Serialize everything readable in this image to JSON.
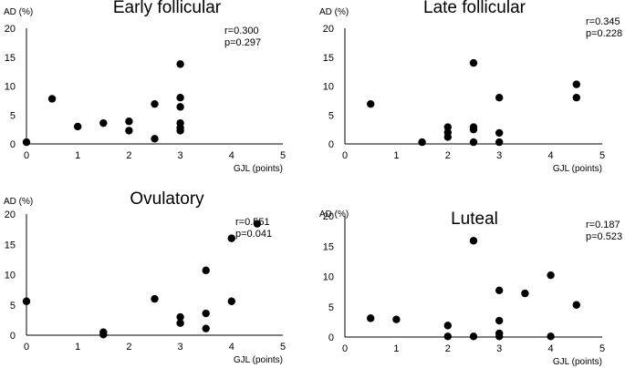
{
  "chart_data": [
    {
      "type": "scatter",
      "title": "Early follicular",
      "xlabel": "GJL (points)",
      "ylabel": "AD (%)",
      "xlim": [
        0,
        5
      ],
      "ylim": [
        0,
        20
      ],
      "xticks": [
        "0",
        "1",
        "2",
        "3",
        "4",
        "5"
      ],
      "yticks": [
        "0",
        "5",
        "10",
        "15",
        "20"
      ],
      "grid": false,
      "stats": [
        "r=0.300",
        "p=0.297"
      ],
      "points": [
        {
          "x": 0,
          "y": 0.3
        },
        {
          "x": 0.5,
          "y": 7.8
        },
        {
          "x": 1,
          "y": 3.0
        },
        {
          "x": 1.5,
          "y": 3.6
        },
        {
          "x": 2,
          "y": 3.9
        },
        {
          "x": 2,
          "y": 2.3
        },
        {
          "x": 2.5,
          "y": 6.9
        },
        {
          "x": 2.5,
          "y": 0.9
        },
        {
          "x": 3,
          "y": 13.8
        },
        {
          "x": 3,
          "y": 8.0
        },
        {
          "x": 3,
          "y": 6.4
        },
        {
          "x": 3,
          "y": 3.6
        },
        {
          "x": 3,
          "y": 2.8
        },
        {
          "x": 3,
          "y": 2.3
        }
      ]
    },
    {
      "type": "scatter",
      "title": "Late follicular",
      "xlabel": "GJL (points)",
      "ylabel": "AD (%)",
      "xlim": [
        0,
        5
      ],
      "ylim": [
        0,
        20
      ],
      "xticks": [
        "0",
        "1",
        "2",
        "3",
        "4",
        "5"
      ],
      "yticks": [
        "0",
        "5",
        "10",
        "15",
        "20"
      ],
      "grid": false,
      "stats": [
        "r=0.345",
        "p=0.228"
      ],
      "points": [
        {
          "x": 0.5,
          "y": 6.9
        },
        {
          "x": 1.5,
          "y": 0.3
        },
        {
          "x": 2,
          "y": 2.9
        },
        {
          "x": 2,
          "y": 2.0
        },
        {
          "x": 2,
          "y": 1.2
        },
        {
          "x": 2.5,
          "y": 14.0
        },
        {
          "x": 2.5,
          "y": 2.9
        },
        {
          "x": 2.5,
          "y": 2.5
        },
        {
          "x": 2.5,
          "y": 0.3
        },
        {
          "x": 3,
          "y": 8.0
        },
        {
          "x": 3,
          "y": 1.9
        },
        {
          "x": 3,
          "y": 0.3
        },
        {
          "x": 4.5,
          "y": 10.3
        },
        {
          "x": 4.5,
          "y": 8.0
        }
      ]
    },
    {
      "type": "scatter",
      "title": "Ovulatory",
      "xlabel": "GJL (points)",
      "ylabel": "AD (%)",
      "xlim": [
        0,
        5
      ],
      "ylim": [
        0,
        20
      ],
      "xticks": [
        "0",
        "1",
        "2",
        "3",
        "4",
        "5"
      ],
      "yticks": [
        "0",
        "5",
        "10",
        "15",
        "20"
      ],
      "grid": false,
      "stats": [
        "r=0.551",
        "p=0.041"
      ],
      "points": [
        {
          "x": 0,
          "y": 5.6
        },
        {
          "x": 1.5,
          "y": 0.5
        },
        {
          "x": 1.5,
          "y": 0.1
        },
        {
          "x": 2.5,
          "y": 6.0
        },
        {
          "x": 3,
          "y": 3.0
        },
        {
          "x": 3,
          "y": 2.0
        },
        {
          "x": 3.5,
          "y": 10.7
        },
        {
          "x": 3.5,
          "y": 3.6
        },
        {
          "x": 3.5,
          "y": 1.1
        },
        {
          "x": 4,
          "y": 16.0
        },
        {
          "x": 4,
          "y": 5.6
        },
        {
          "x": 4.5,
          "y": 18.4
        }
      ]
    },
    {
      "type": "scatter",
      "title": "Luteal",
      "xlabel": "GJL (points)",
      "ylabel": "AD (%)",
      "xlim": [
        0,
        5
      ],
      "ylim": [
        0,
        20
      ],
      "xticks": [
        "0",
        "1",
        "2",
        "3",
        "4",
        "5"
      ],
      "yticks": [
        "0",
        "5",
        "10",
        "15",
        "20"
      ],
      "grid": false,
      "stats": [
        "r=0.187",
        "p=0.523"
      ],
      "points": [
        {
          "x": 0.5,
          "y": 3.1
        },
        {
          "x": 1,
          "y": 2.9
        },
        {
          "x": 2,
          "y": 1.9
        },
        {
          "x": 2,
          "y": 0.1
        },
        {
          "x": 2.5,
          "y": 15.9
        },
        {
          "x": 2.5,
          "y": 0.1
        },
        {
          "x": 3,
          "y": 7.7
        },
        {
          "x": 3,
          "y": 2.7
        },
        {
          "x": 3,
          "y": 0.6
        },
        {
          "x": 3,
          "y": 0.1
        },
        {
          "x": 3.5,
          "y": 7.2
        },
        {
          "x": 4,
          "y": 10.2
        },
        {
          "x": 4,
          "y": 0.1
        },
        {
          "x": 4.5,
          "y": 5.3
        }
      ]
    }
  ]
}
